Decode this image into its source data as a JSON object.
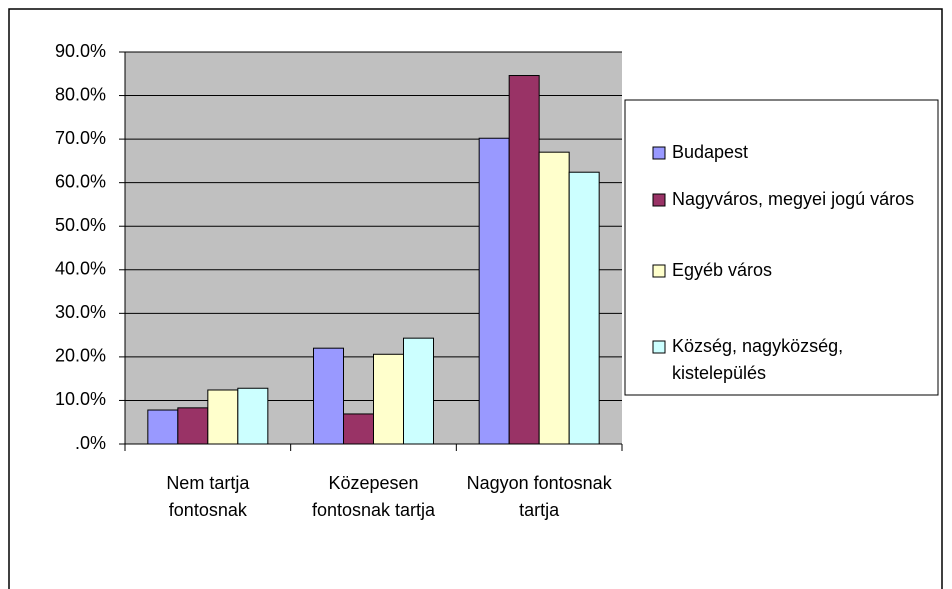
{
  "chart_data": {
    "type": "bar",
    "categories": [
      "Nem tartja fontosnak",
      "Közepesen fontosnak tartja",
      "Nagyon fontosnak tartja"
    ],
    "series": [
      {
        "name": "Budapest",
        "color": "#9999ff",
        "values": [
          7.8,
          22.0,
          70.2
        ]
      },
      {
        "name": "Nagyváros, megyei jogú város",
        "color": "#993366",
        "values": [
          8.3,
          6.9,
          84.6
        ]
      },
      {
        "name": "Egyéb város",
        "color": "#ffffcc",
        "values": [
          12.4,
          20.6,
          67.0
        ]
      },
      {
        "name": "Község, nagyközség, kistelepülés",
        "color": "#ccffff",
        "values": [
          12.8,
          24.3,
          62.4
        ]
      }
    ],
    "ylim": [
      0,
      90
    ],
    "yticks": [
      {
        "value": 0,
        "label": ".0%"
      },
      {
        "value": 10,
        "label": "10.0%"
      },
      {
        "value": 20,
        "label": "20.0%"
      },
      {
        "value": 30,
        "label": "30.0%"
      },
      {
        "value": 40,
        "label": "40.0%"
      },
      {
        "value": 50,
        "label": "50.0%"
      },
      {
        "value": 60,
        "label": "60.0%"
      },
      {
        "value": 70,
        "label": "70.0%"
      },
      {
        "value": 80,
        "label": "80.0%"
      },
      {
        "value": 90,
        "label": "90.0%"
      }
    ],
    "grid": true,
    "legend": "right"
  }
}
